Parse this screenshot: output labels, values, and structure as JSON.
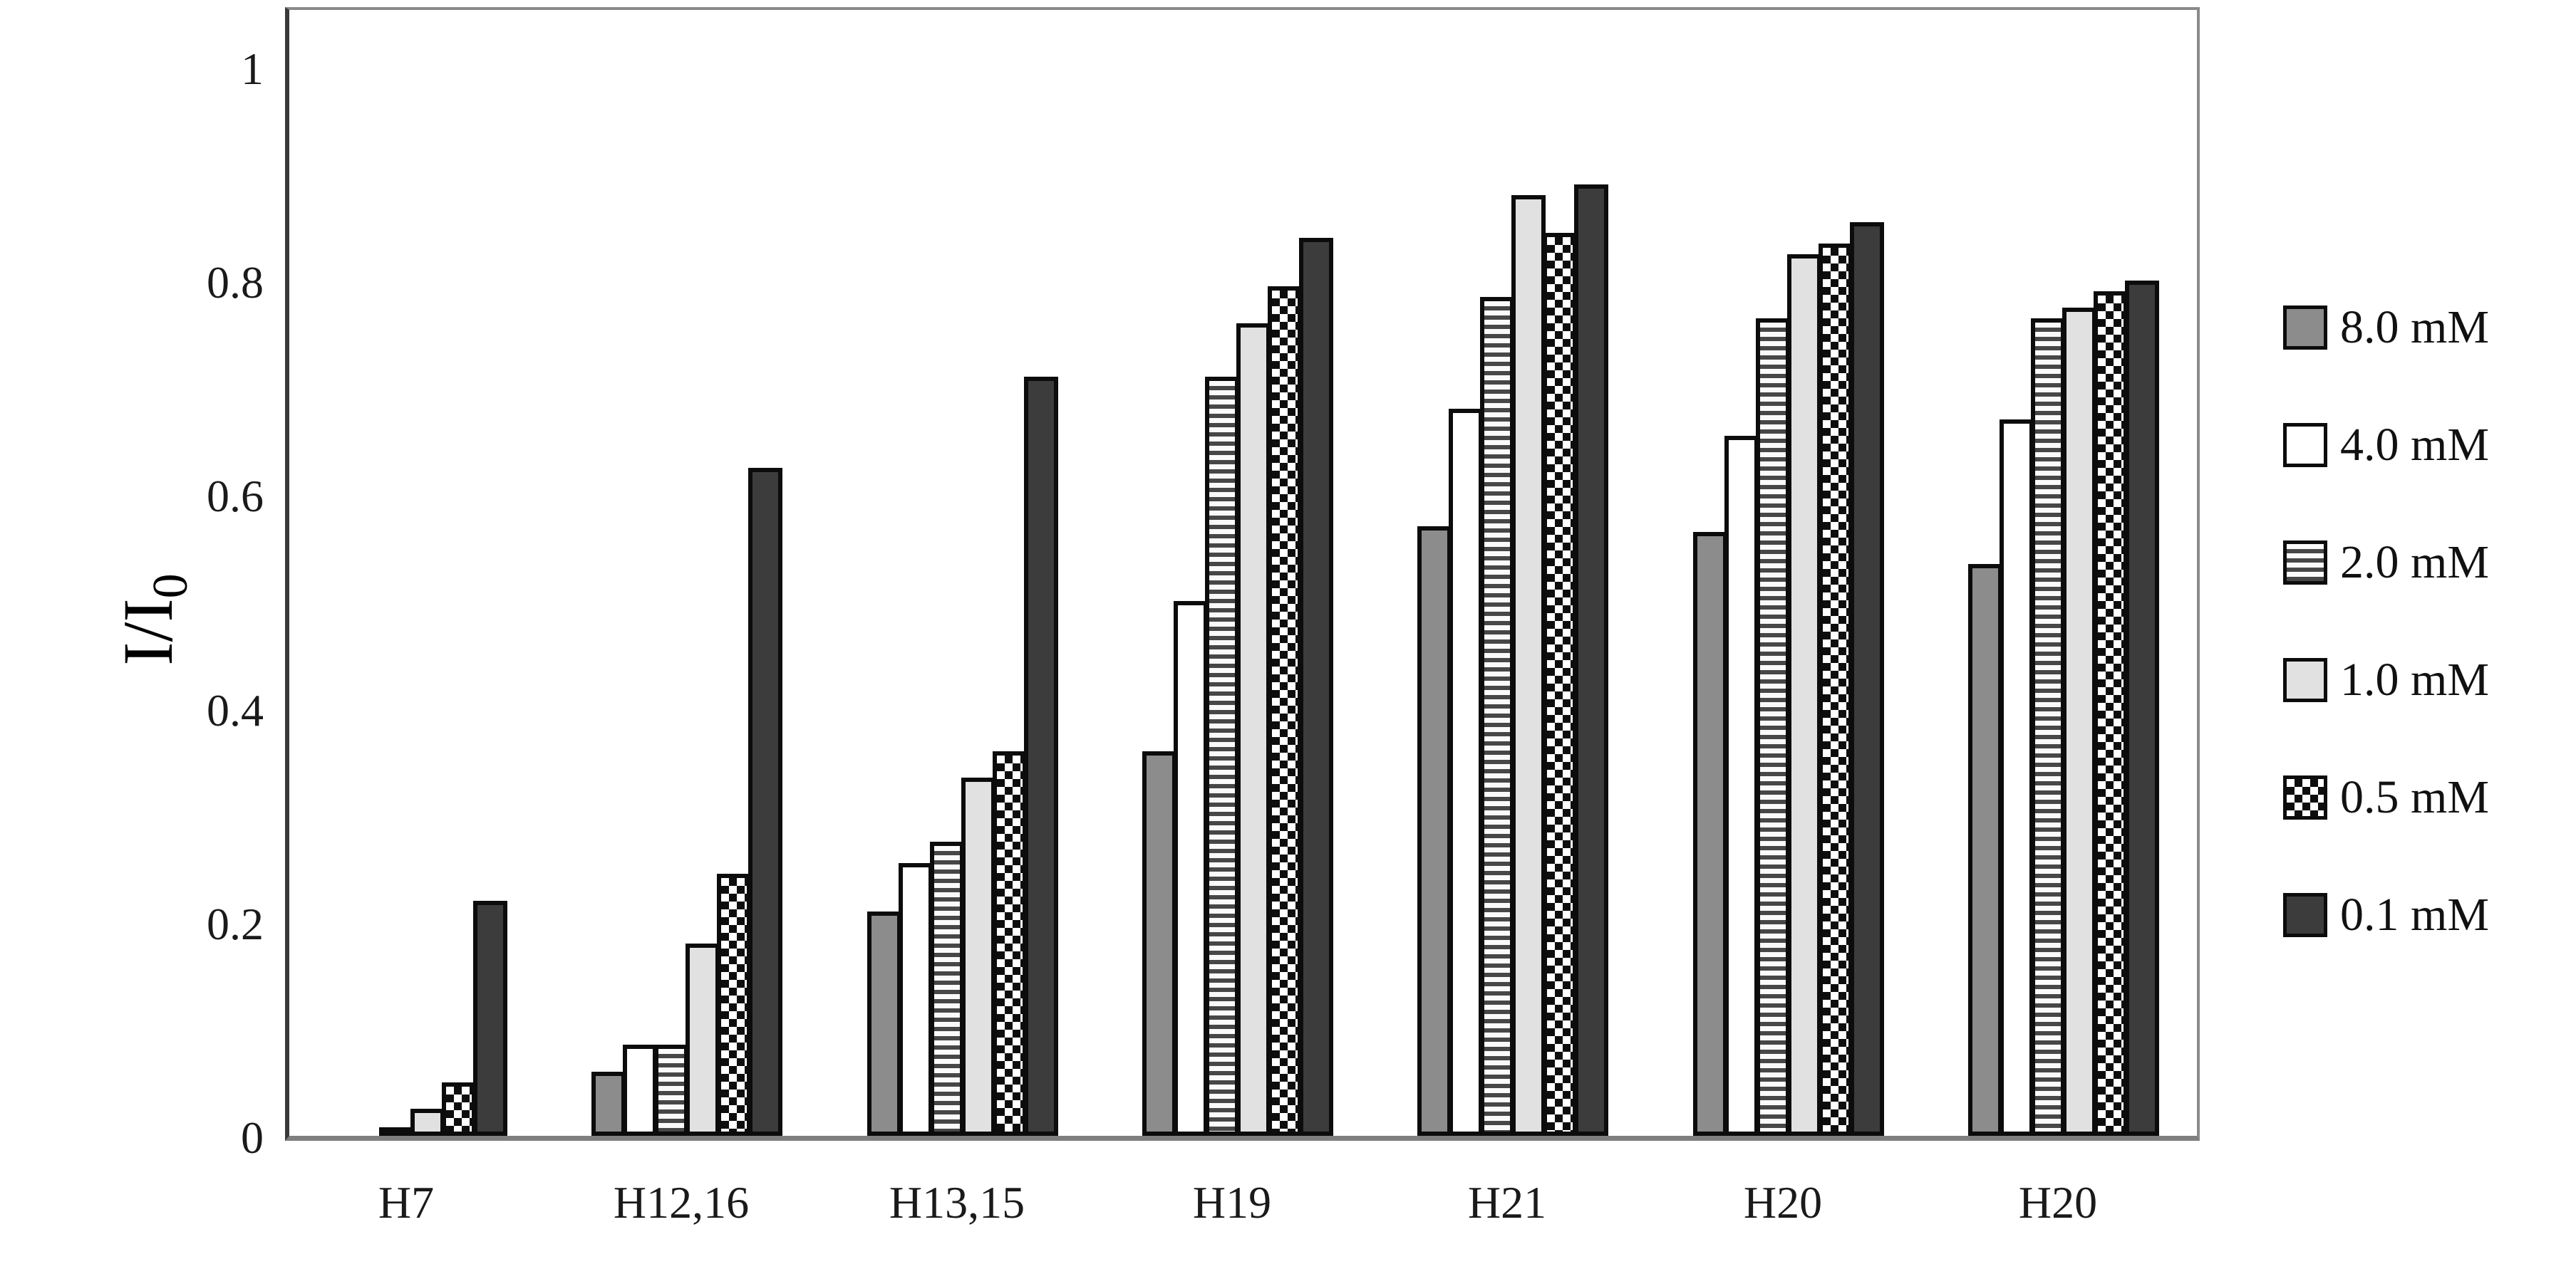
{
  "chart_data": {
    "type": "bar",
    "title": "",
    "xlabel": "",
    "ylabel": "I/I0",
    "ylabel_main": "I/I",
    "ylabel_sub": "0",
    "categories": [
      "H7",
      "H12,16",
      "H13,15",
      "H19",
      "H21",
      "H20",
      "H20"
    ],
    "series": [
      {
        "name": "8.0 mM",
        "pattern": "gray",
        "values": [
          0,
          0.06,
          0.21,
          0.36,
          0.57,
          0.565,
          0.535
        ]
      },
      {
        "name": "4.0 mM",
        "pattern": "white",
        "values": [
          0,
          0.085,
          0.255,
          0.5,
          0.68,
          0.655,
          0.67
        ]
      },
      {
        "name": "2.0 mM",
        "pattern": "hstripe",
        "values": [
          0.008,
          0.085,
          0.275,
          0.71,
          0.785,
          0.765,
          0.765
        ]
      },
      {
        "name": "1.0 mM",
        "pattern": "lightgray",
        "values": [
          0.025,
          0.18,
          0.335,
          0.76,
          0.88,
          0.825,
          0.775
        ]
      },
      {
        "name": "0.5 mM",
        "pattern": "checker",
        "values": [
          0.05,
          0.245,
          0.36,
          0.795,
          0.845,
          0.835,
          0.79
        ]
      },
      {
        "name": "0.1 mM",
        "pattern": "dark",
        "values": [
          0.22,
          0.625,
          0.71,
          0.84,
          0.89,
          0.855,
          0.8
        ]
      }
    ],
    "yticks": [
      "0",
      "0.2",
      "0.4",
      "0.6",
      "0.8",
      "1"
    ],
    "ytick_values": [
      0,
      0.2,
      0.4,
      0.6,
      0.8,
      1
    ],
    "ylim": [
      0,
      1.06
    ],
    "grid": false,
    "legend_position": "right"
  },
  "colors": {
    "bar_outline": "#0c0c0c",
    "gray_fill": "#8c8c8c",
    "white_fill": "#ffffff",
    "lightgray_fill": "#e1e1e1",
    "dark_fill": "#3c3c3c",
    "stripe_dark": "#474747",
    "axis_dark": "#3a3a3a",
    "axis_light": "#8a8a8a",
    "text": "#1a1a1a"
  }
}
